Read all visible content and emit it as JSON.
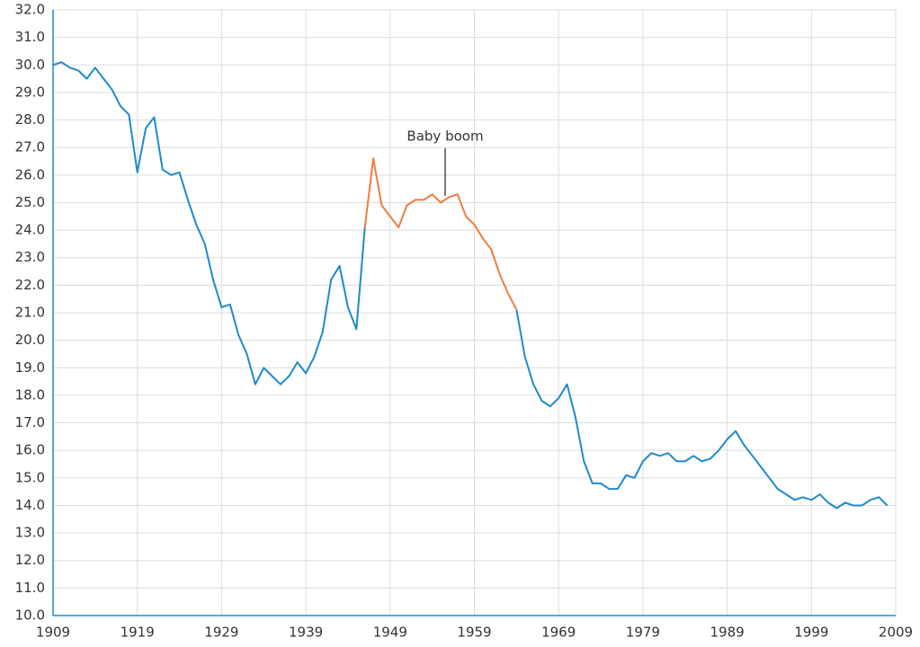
{
  "chart_data": {
    "type": "line",
    "annotation": "Baby boom",
    "x": [
      1909,
      1910,
      1911,
      1912,
      1913,
      1914,
      1915,
      1916,
      1917,
      1918,
      1919,
      1920,
      1921,
      1922,
      1923,
      1924,
      1925,
      1926,
      1927,
      1928,
      1929,
      1930,
      1931,
      1932,
      1933,
      1934,
      1935,
      1936,
      1937,
      1938,
      1939,
      1940,
      1941,
      1942,
      1943,
      1944,
      1945,
      1946,
      1947,
      1948,
      1949,
      1950,
      1951,
      1952,
      1953,
      1954,
      1955,
      1956,
      1957,
      1958,
      1959,
      1960,
      1961,
      1962,
      1963,
      1964,
      1965,
      1966,
      1967,
      1968,
      1969,
      1970,
      1971,
      1972,
      1973,
      1974,
      1975,
      1976,
      1977,
      1978,
      1979,
      1980,
      1981,
      1982,
      1983,
      1984,
      1985,
      1986,
      1987,
      1988,
      1989,
      1990,
      1991,
      1992,
      1993,
      1994,
      1995,
      1996,
      1997,
      1998,
      1999,
      2000,
      2001,
      2002,
      2003,
      2004,
      2005,
      2006,
      2007,
      2008
    ],
    "series": [
      {
        "color": "#1f8ac9",
        "values": [
          30.0,
          30.1,
          29.9,
          29.8,
          29.5,
          29.9,
          29.5,
          29.1,
          28.5,
          28.2,
          26.1,
          27.7,
          28.1,
          26.2,
          26.0,
          26.1,
          25.1,
          24.2,
          23.5,
          22.2,
          21.2,
          21.3,
          20.2,
          19.5,
          18.4,
          19.0,
          18.7,
          18.4,
          18.7,
          19.2,
          18.8,
          19.4,
          20.3,
          22.2,
          22.7,
          21.2,
          20.4,
          24.1,
          null,
          null,
          null,
          null,
          null,
          null,
          null,
          null,
          null,
          null,
          null,
          null,
          null,
          null,
          null,
          null,
          null,
          21.1,
          19.4,
          18.4,
          17.8,
          17.6,
          17.9,
          18.4,
          17.2,
          15.6,
          14.8,
          14.8,
          14.6,
          14.6,
          15.1,
          15.0,
          15.6,
          15.9,
          15.8,
          15.9,
          15.6,
          15.6,
          15.8,
          15.6,
          15.7,
          16.0,
          16.4,
          16.7,
          16.2,
          15.8,
          15.4,
          15.0,
          14.6,
          14.4,
          14.2,
          14.3,
          14.2,
          14.4,
          14.1,
          13.9,
          14.1,
          14.0,
          14.0,
          14.2,
          14.3,
          14.0
        ]
      },
      {
        "color": "#f07b3f",
        "values": [
          null,
          null,
          null,
          null,
          null,
          null,
          null,
          null,
          null,
          null,
          null,
          null,
          null,
          null,
          null,
          null,
          null,
          null,
          null,
          null,
          null,
          null,
          null,
          null,
          null,
          null,
          null,
          null,
          null,
          null,
          null,
          null,
          null,
          null,
          null,
          null,
          null,
          24.1,
          26.6,
          24.9,
          24.5,
          24.1,
          24.9,
          25.1,
          25.1,
          25.3,
          25.0,
          25.2,
          25.3,
          24.5,
          24.2,
          23.7,
          23.3,
          22.4,
          21.7,
          21.1,
          null,
          null,
          null,
          null,
          null,
          null,
          null,
          null,
          null,
          null,
          null,
          null,
          null,
          null,
          null,
          null,
          null,
          null,
          null,
          null,
          null,
          null,
          null,
          null,
          null,
          null,
          null,
          null,
          null,
          null,
          null,
          null,
          null,
          null,
          null,
          null,
          null,
          null,
          null,
          null,
          null,
          null,
          null,
          null
        ]
      }
    ],
    "xlim": [
      1909,
      2009
    ],
    "xticks": [
      1909,
      1919,
      1929,
      1939,
      1949,
      1959,
      1969,
      1979,
      1989,
      1999,
      2009
    ],
    "ylim": [
      10,
      32
    ],
    "yticks": [
      {
        "value": 10,
        "label": "10.0"
      },
      {
        "value": 11,
        "label": "11.0"
      },
      {
        "value": 12,
        "label": "12.0"
      },
      {
        "value": 13,
        "label": "13.0"
      },
      {
        "value": 14,
        "label": "14.0"
      },
      {
        "value": 15,
        "label": "15.0"
      },
      {
        "value": 16,
        "label": "16.0"
      },
      {
        "value": 17,
        "label": "17.0"
      },
      {
        "value": 18,
        "label": "18.0"
      },
      {
        "value": 19,
        "label": "19.0"
      },
      {
        "value": 20,
        "label": "20.0"
      },
      {
        "value": 21,
        "label": "21.0"
      },
      {
        "value": 22,
        "label": "22.0"
      },
      {
        "value": 23,
        "label": "23.0"
      },
      {
        "value": 24,
        "label": "24.0"
      },
      {
        "value": 25,
        "label": "25.0"
      },
      {
        "value": 26,
        "label": "26.0"
      },
      {
        "value": 27,
        "label": "27.0"
      },
      {
        "value": 28,
        "label": "28.0"
      },
      {
        "value": 29,
        "label": "29.0"
      },
      {
        "value": 30,
        "label": "30.0"
      },
      {
        "value": 31,
        "label": "31.0"
      },
      {
        "value": 32,
        "label": "32.0"
      }
    ],
    "grid": true
  }
}
